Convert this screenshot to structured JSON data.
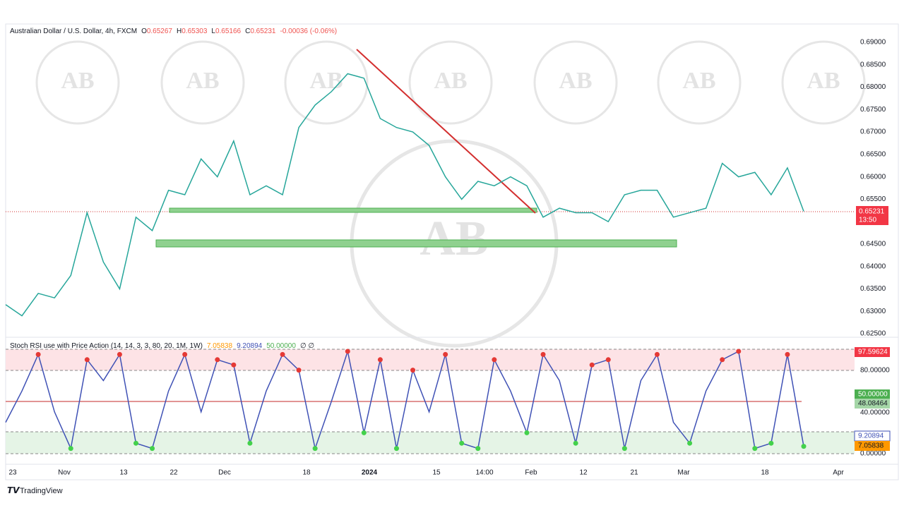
{
  "header": {
    "symbol": "Australian Dollar / U.S. Dollar, 4h, FXCM",
    "ohlc": [
      {
        "label": "O",
        "value": "0.65267"
      },
      {
        "label": "H",
        "value": "0.65303"
      },
      {
        "label": "L",
        "value": "0.65166"
      },
      {
        "label": "C",
        "value": "0.65231"
      }
    ],
    "change": "-0.00036 (-0.06%)"
  },
  "watermark": "AB",
  "price_pane": {
    "axis_labels": [
      "0.69000",
      "0.68500",
      "0.68000",
      "0.67500",
      "0.67000",
      "0.66500",
      "0.66000",
      "0.65500",
      "0.65000",
      "0.64500",
      "0.64000",
      "0.63500",
      "0.63000",
      "0.62500"
    ],
    "last_price": "0.65231",
    "countdown": "13:50",
    "closes": [
      0.6315,
      0.629,
      0.634,
      0.633,
      0.638,
      0.652,
      0.641,
      0.635,
      0.651,
      0.648,
      0.657,
      0.656,
      0.664,
      0.66,
      0.668,
      0.656,
      0.658,
      0.656,
      0.671,
      0.676,
      0.679,
      0.683,
      0.682,
      0.673,
      0.671,
      0.67,
      0.667,
      0.66,
      0.655,
      0.659,
      0.658,
      0.66,
      0.658,
      0.651,
      0.653,
      0.652,
      0.652,
      0.65,
      0.656,
      0.657,
      0.657,
      0.651,
      0.652,
      0.653,
      0.663,
      0.66,
      0.661,
      0.656,
      0.662,
      0.6523
    ]
  },
  "stoch_pane": {
    "title": "Stoch RSI use with Price Action (14, 14, 3, 3, 80, 20, 1M, 1W)",
    "readouts": [
      "7.05838",
      "9.20894",
      "50.00000",
      "∅ ∅"
    ],
    "axis_labels": [
      "80.00000",
      "40.00000",
      "0.00000"
    ],
    "tags": [
      "97.59624",
      "50.00000",
      "48.08464",
      "9.20894",
      "7.05838"
    ],
    "k_values": [
      30,
      60,
      95,
      40,
      5,
      90,
      70,
      95,
      10,
      5,
      60,
      95,
      40,
      90,
      85,
      10,
      60,
      95,
      80,
      5,
      50,
      98,
      20,
      90,
      5,
      80,
      40,
      95,
      10,
      5,
      90,
      60,
      20,
      95,
      70,
      10,
      85,
      90,
      5,
      70,
      95,
      30,
      10,
      60,
      90,
      98,
      5,
      10,
      95,
      7
    ]
  },
  "x_axis": [
    "23",
    "Nov",
    "13",
    "22",
    "Dec",
    "18",
    "2024",
    "15",
    "14:00",
    "Feb",
    "12",
    "21",
    "Mar",
    "18",
    "Apr"
  ],
  "footer": "TradingView"
}
